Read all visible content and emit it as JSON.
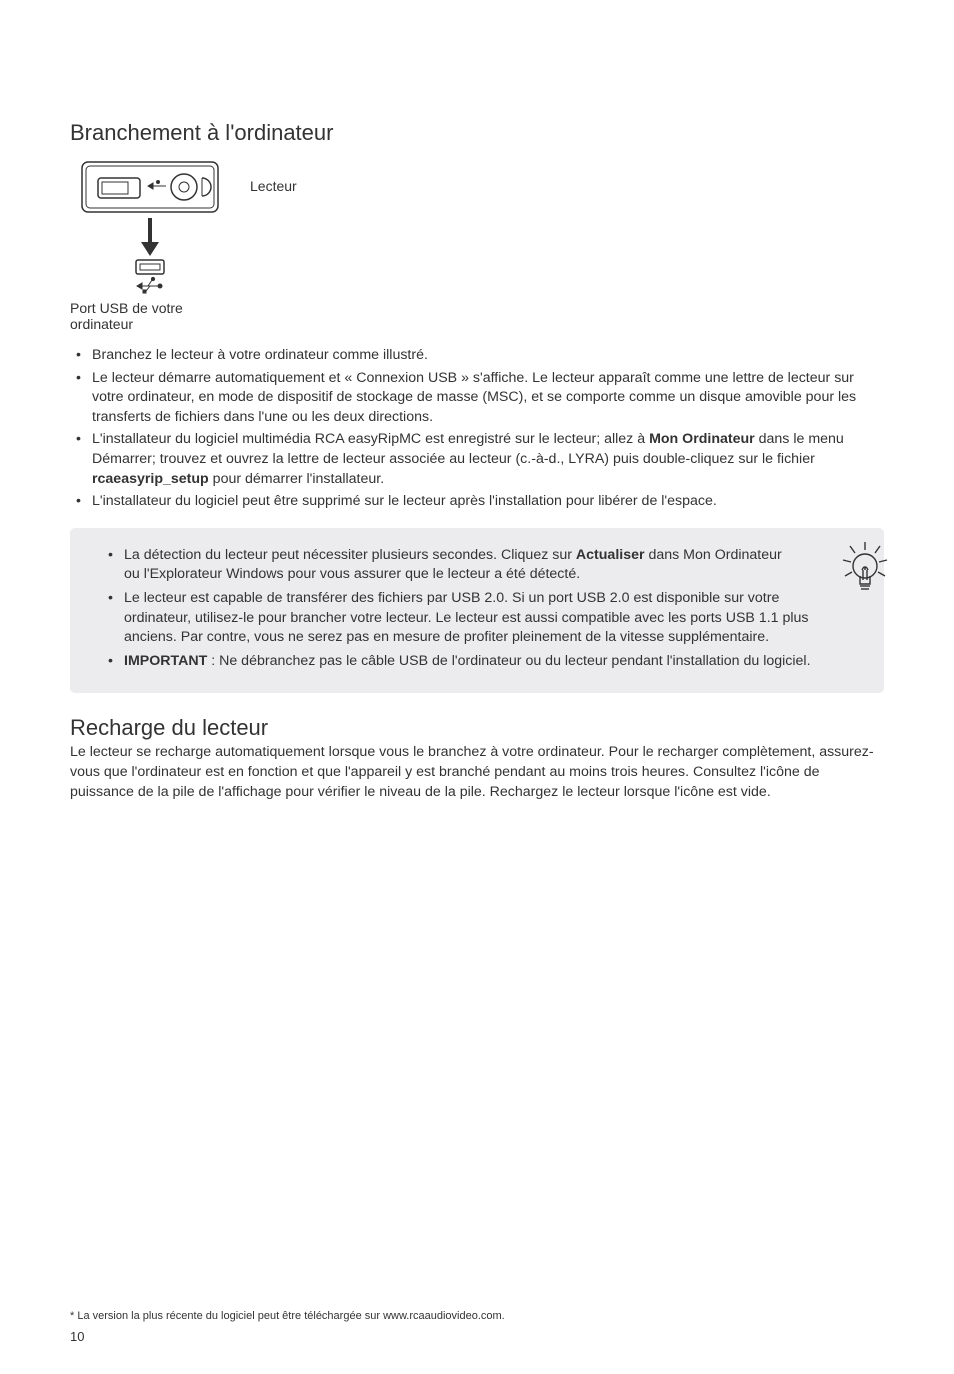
{
  "section1": {
    "title": "Branchement à l'ordinateur",
    "player_label": "Lecteur",
    "port_caption": "Port USB de votre ordinateur",
    "bullets": [
      "Branchez le lecteur à votre ordinateur comme illustré.",
      "Le lecteur démarre automatiquement et « Connexion USB » s'affiche. Le lecteur apparaît comme une lettre de lecteur sur votre ordinateur, en mode de dispositif de stockage de masse (MSC), et se comporte comme un disque amovible pour les transferts de fichiers dans l'une ou les deux directions.",
      "L'installateur du logiciel multimédia RCA easyRipMC est enregistré sur le lecteur; allez à <b>Mon Ordinateur</b> dans le menu Démarrer; trouvez et ouvrez la lettre de lecteur associée au lecteur (c.-à-d., LYRA) puis double-cliquez sur le fichier <b>rcaeasyrip_setup</b> pour démarrer l'installateur.",
      "L'installateur du logiciel peut être supprimé sur le lecteur après l'installation pour libérer de l'espace."
    ]
  },
  "tipbox": {
    "bullets": [
      "La détection du lecteur peut nécessiter plusieurs secondes. Cliquez sur <b>Actualiser</b> dans Mon Ordinateur ou l'Explorateur Windows pour vous assurer que le lecteur a été détecté.",
      "Le lecteur est capable de transférer des fichiers par USB 2.0. Si un port USB 2.0 est disponible sur votre ordinateur, utilisez-le pour brancher votre lecteur. Le lecteur est aussi compatible avec les ports USB 1.1 plus anciens. Par contre, vous ne serez pas en mesure de profiter pleinement de la vitesse supplémentaire.",
      "<b>IMPORTANT</b> : Ne débranchez pas le câble USB de l'ordinateur ou du lecteur pendant l'installation du logiciel."
    ]
  },
  "section2": {
    "title": "Recharge du lecteur",
    "body": "Le lecteur se recharge automatiquement lorsque vous le branchez à votre ordinateur. Pour le recharger complètement, assurez-vous que l'ordinateur est en fonction et que l'appareil y est branché pendant au moins trois heures. Consultez l'icône de puissance de la pile de l'affichage pour vérifier le niveau de la pile. Rechargez le lecteur lorsque l'icône est vide."
  },
  "footnote": "* La version la plus récente du logiciel peut être téléchargée sur www.rcaaudiovideo.com.",
  "pagenum": "10",
  "colors": {
    "tip_bg": "#ececee",
    "text": "#333333"
  }
}
